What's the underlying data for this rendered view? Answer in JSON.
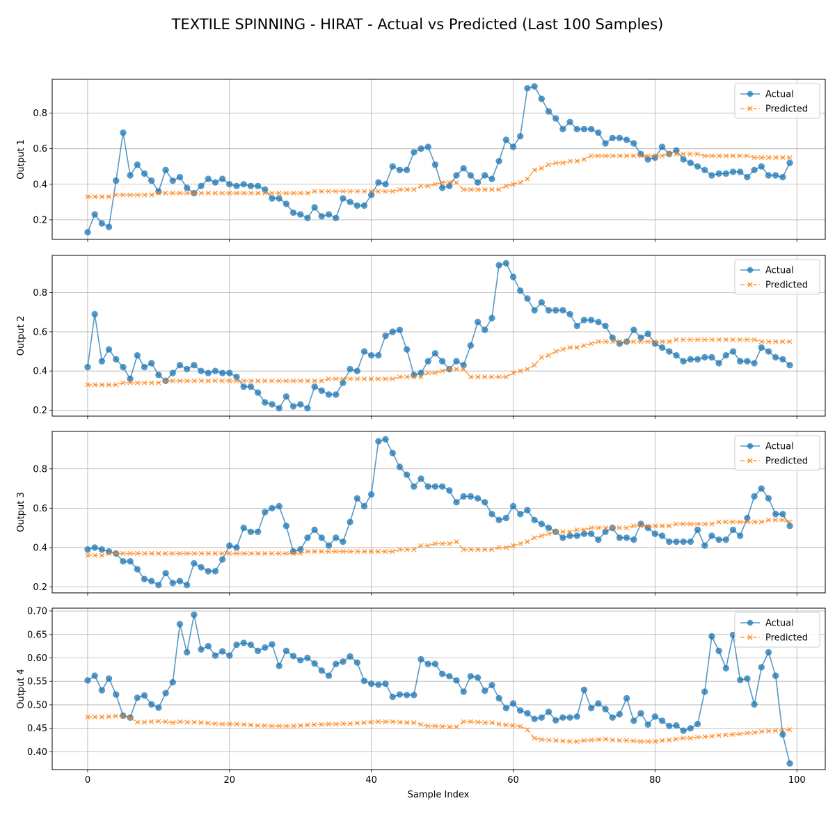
{
  "chart_data": {
    "type": "line",
    "title": "TEXTILE SPINNING - HIRAT - Actual vs Predicted (Last 100 Samples)",
    "xlabel": "Sample Index",
    "x_range": [
      0,
      99
    ],
    "xticks": [
      0,
      20,
      40,
      60,
      80,
      100
    ],
    "xlim": [
      -5,
      104
    ],
    "grid": true,
    "legend_position": "top-right",
    "colors": {
      "actual": "#1f77b4",
      "predicted": "#ff7f0e"
    },
    "subplots": [
      {
        "ylabel": "Output 1",
        "ylim": [
          0.09,
          0.99
        ],
        "yticks": [
          0.2,
          0.4,
          0.6,
          0.8
        ],
        "series": [
          {
            "name": "Actual",
            "marker": "circle",
            "values": [
              0.13,
              0.23,
              0.18,
              0.16,
              0.42,
              0.69,
              0.45,
              0.51,
              0.46,
              0.42,
              0.36,
              0.48,
              0.42,
              0.44,
              0.38,
              0.35,
              0.39,
              0.43,
              0.41,
              0.43,
              0.4,
              0.39,
              0.4,
              0.39,
              0.39,
              0.37,
              0.32,
              0.32,
              0.29,
              0.24,
              0.23,
              0.21,
              0.27,
              0.22,
              0.23,
              0.21,
              0.32,
              0.3,
              0.28,
              0.28,
              0.34,
              0.41,
              0.4,
              0.5,
              0.48,
              0.48,
              0.58,
              0.6,
              0.61,
              0.51,
              0.38,
              0.39,
              0.45,
              0.49,
              0.45,
              0.41,
              0.45,
              0.43,
              0.53,
              0.65,
              0.61,
              0.67,
              0.94,
              0.95,
              0.88,
              0.81,
              0.77,
              0.71,
              0.75,
              0.71,
              0.71,
              0.71,
              0.69,
              0.63,
              0.66,
              0.66,
              0.65,
              0.63,
              0.57,
              0.54,
              0.55,
              0.61,
              0.57,
              0.59,
              0.54,
              0.52,
              0.5,
              0.48,
              0.45,
              0.46,
              0.46,
              0.47,
              0.47,
              0.44,
              0.48,
              0.5,
              0.45,
              0.45,
              0.44,
              0.52
            ]
          },
          {
            "name": "Predicted",
            "marker": "x",
            "values": [
              0.33,
              0.33,
              0.33,
              0.33,
              0.34,
              0.34,
              0.34,
              0.34,
              0.34,
              0.34,
              0.35,
              0.35,
              0.35,
              0.35,
              0.35,
              0.35,
              0.35,
              0.35,
              0.35,
              0.35,
              0.35,
              0.35,
              0.35,
              0.35,
              0.35,
              0.35,
              0.35,
              0.35,
              0.35,
              0.35,
              0.35,
              0.35,
              0.36,
              0.36,
              0.36,
              0.36,
              0.36,
              0.36,
              0.36,
              0.36,
              0.36,
              0.36,
              0.36,
              0.36,
              0.37,
              0.37,
              0.37,
              0.39,
              0.39,
              0.4,
              0.41,
              0.41,
              0.41,
              0.37,
              0.37,
              0.37,
              0.37,
              0.37,
              0.37,
              0.39,
              0.4,
              0.41,
              0.43,
              0.48,
              0.49,
              0.51,
              0.52,
              0.52,
              0.53,
              0.53,
              0.54,
              0.56,
              0.56,
              0.56,
              0.56,
              0.56,
              0.56,
              0.56,
              0.56,
              0.56,
              0.56,
              0.56,
              0.57,
              0.57,
              0.57,
              0.57,
              0.57,
              0.56,
              0.56,
              0.56,
              0.56,
              0.56,
              0.56,
              0.56,
              0.55,
              0.55,
              0.55,
              0.55,
              0.55,
              0.55
            ]
          }
        ]
      },
      {
        "ylabel": "Output 2",
        "ylim": [
          0.17,
          0.99
        ],
        "yticks": [
          0.2,
          0.4,
          0.6,
          0.8
        ],
        "series": [
          {
            "name": "Actual",
            "marker": "circle",
            "values": [
              0.42,
              0.69,
              0.45,
              0.51,
              0.46,
              0.42,
              0.36,
              0.48,
              0.42,
              0.44,
              0.38,
              0.35,
              0.39,
              0.43,
              0.41,
              0.43,
              0.4,
              0.39,
              0.4,
              0.39,
              0.39,
              0.37,
              0.32,
              0.32,
              0.29,
              0.24,
              0.23,
              0.21,
              0.27,
              0.22,
              0.23,
              0.21,
              0.32,
              0.3,
              0.28,
              0.28,
              0.34,
              0.41,
              0.4,
              0.5,
              0.48,
              0.48,
              0.58,
              0.6,
              0.61,
              0.51,
              0.38,
              0.39,
              0.45,
              0.49,
              0.45,
              0.41,
              0.45,
              0.43,
              0.53,
              0.65,
              0.61,
              0.67,
              0.94,
              0.95,
              0.88,
              0.81,
              0.77,
              0.71,
              0.75,
              0.71,
              0.71,
              0.71,
              0.69,
              0.63,
              0.66,
              0.66,
              0.65,
              0.63,
              0.57,
              0.54,
              0.55,
              0.61,
              0.57,
              0.59,
              0.54,
              0.52,
              0.5,
              0.48,
              0.45,
              0.46,
              0.46,
              0.47,
              0.47,
              0.44,
              0.48,
              0.5,
              0.45,
              0.45,
              0.44,
              0.52,
              0.5,
              0.47,
              0.46,
              0.43
            ]
          },
          {
            "name": "Predicted",
            "marker": "x",
            "values": [
              0.33,
              0.33,
              0.33,
              0.33,
              0.33,
              0.34,
              0.34,
              0.34,
              0.34,
              0.34,
              0.34,
              0.35,
              0.35,
              0.35,
              0.35,
              0.35,
              0.35,
              0.35,
              0.35,
              0.35,
              0.35,
              0.35,
              0.35,
              0.35,
              0.35,
              0.35,
              0.35,
              0.35,
              0.35,
              0.35,
              0.35,
              0.35,
              0.35,
              0.35,
              0.36,
              0.36,
              0.36,
              0.36,
              0.36,
              0.36,
              0.36,
              0.36,
              0.36,
              0.36,
              0.37,
              0.37,
              0.37,
              0.37,
              0.39,
              0.39,
              0.4,
              0.41,
              0.41,
              0.41,
              0.37,
              0.37,
              0.37,
              0.37,
              0.37,
              0.37,
              0.39,
              0.4,
              0.41,
              0.43,
              0.47,
              0.48,
              0.5,
              0.51,
              0.52,
              0.52,
              0.53,
              0.54,
              0.55,
              0.55,
              0.55,
              0.55,
              0.55,
              0.55,
              0.55,
              0.55,
              0.55,
              0.55,
              0.55,
              0.56,
              0.56,
              0.56,
              0.56,
              0.56,
              0.56,
              0.56,
              0.56,
              0.56,
              0.56,
              0.56,
              0.56,
              0.55,
              0.55,
              0.55,
              0.55,
              0.55
            ]
          }
        ]
      },
      {
        "ylabel": "Output 3",
        "ylim": [
          0.17,
          0.99
        ],
        "yticks": [
          0.2,
          0.4,
          0.6,
          0.8
        ],
        "series": [
          {
            "name": "Actual",
            "marker": "circle",
            "values": [
              0.39,
              0.4,
              0.39,
              0.38,
              0.37,
              0.33,
              0.33,
              0.29,
              0.24,
              0.23,
              0.21,
              0.27,
              0.22,
              0.23,
              0.21,
              0.32,
              0.3,
              0.28,
              0.28,
              0.34,
              0.41,
              0.4,
              0.5,
              0.48,
              0.48,
              0.58,
              0.6,
              0.61,
              0.51,
              0.38,
              0.39,
              0.45,
              0.49,
              0.45,
              0.41,
              0.45,
              0.43,
              0.53,
              0.65,
              0.61,
              0.67,
              0.94,
              0.95,
              0.88,
              0.81,
              0.77,
              0.71,
              0.75,
              0.71,
              0.71,
              0.71,
              0.69,
              0.63,
              0.66,
              0.66,
              0.65,
              0.63,
              0.57,
              0.54,
              0.55,
              0.61,
              0.57,
              0.59,
              0.54,
              0.52,
              0.5,
              0.48,
              0.45,
              0.46,
              0.46,
              0.47,
              0.47,
              0.44,
              0.48,
              0.5,
              0.45,
              0.45,
              0.44,
              0.52,
              0.5,
              0.47,
              0.46,
              0.43,
              0.43,
              0.43,
              0.43,
              0.49,
              0.41,
              0.46,
              0.44,
              0.44,
              0.49,
              0.46,
              0.55,
              0.66,
              0.7,
              0.65,
              0.57,
              0.57,
              0.51
            ]
          },
          {
            "name": "Predicted",
            "marker": "x",
            "values": [
              0.36,
              0.36,
              0.36,
              0.37,
              0.37,
              0.37,
              0.37,
              0.37,
              0.37,
              0.37,
              0.37,
              0.37,
              0.37,
              0.37,
              0.37,
              0.37,
              0.37,
              0.37,
              0.37,
              0.37,
              0.37,
              0.37,
              0.37,
              0.37,
              0.37,
              0.37,
              0.37,
              0.37,
              0.37,
              0.37,
              0.37,
              0.38,
              0.38,
              0.38,
              0.38,
              0.38,
              0.38,
              0.38,
              0.38,
              0.38,
              0.38,
              0.38,
              0.38,
              0.38,
              0.39,
              0.39,
              0.39,
              0.41,
              0.41,
              0.42,
              0.42,
              0.42,
              0.43,
              0.39,
              0.39,
              0.39,
              0.39,
              0.39,
              0.4,
              0.4,
              0.41,
              0.42,
              0.43,
              0.45,
              0.46,
              0.47,
              0.48,
              0.48,
              0.48,
              0.49,
              0.49,
              0.5,
              0.5,
              0.5,
              0.5,
              0.5,
              0.5,
              0.51,
              0.51,
              0.51,
              0.51,
              0.51,
              0.51,
              0.52,
              0.52,
              0.52,
              0.52,
              0.52,
              0.52,
              0.53,
              0.53,
              0.53,
              0.53,
              0.53,
              0.53,
              0.53,
              0.54,
              0.54,
              0.54,
              0.53
            ]
          }
        ]
      },
      {
        "ylabel": "Output 4",
        "ylim": [
          0.362,
          0.706
        ],
        "yticks": [
          0.4,
          0.45,
          0.5,
          0.55,
          0.6,
          0.65,
          0.7
        ],
        "ytick_labels": [
          "0.40",
          "0.45",
          "0.50",
          "0.55",
          "0.60",
          "0.65",
          "0.70"
        ],
        "series": [
          {
            "name": "Actual",
            "marker": "circle",
            "values": [
              0.552,
              0.562,
              0.531,
              0.556,
              0.522,
              0.477,
              0.473,
              0.515,
              0.52,
              0.501,
              0.494,
              0.525,
              0.548,
              0.672,
              0.612,
              0.692,
              0.618,
              0.625,
              0.605,
              0.614,
              0.605,
              0.628,
              0.632,
              0.628,
              0.615,
              0.622,
              0.629,
              0.583,
              0.615,
              0.604,
              0.595,
              0.6,
              0.588,
              0.573,
              0.562,
              0.587,
              0.592,
              0.603,
              0.59,
              0.551,
              0.545,
              0.543,
              0.545,
              0.517,
              0.522,
              0.521,
              0.521,
              0.597,
              0.587,
              0.587,
              0.566,
              0.561,
              0.552,
              0.528,
              0.561,
              0.558,
              0.53,
              0.542,
              0.514,
              0.493,
              0.503,
              0.488,
              0.482,
              0.47,
              0.473,
              0.485,
              0.467,
              0.473,
              0.473,
              0.475,
              0.532,
              0.493,
              0.503,
              0.491,
              0.473,
              0.48,
              0.514,
              0.466,
              0.482,
              0.458,
              0.475,
              0.466,
              0.455,
              0.456,
              0.445,
              0.45,
              0.459,
              0.528,
              0.646,
              0.615,
              0.578,
              0.649,
              0.553,
              0.556,
              0.501,
              0.58,
              0.612,
              0.562,
              0.437,
              0.375
            ]
          },
          {
            "name": "Predicted",
            "marker": "x",
            "values": [
              0.474,
              0.474,
              0.474,
              0.475,
              0.476,
              0.476,
              0.472,
              0.463,
              0.463,
              0.464,
              0.465,
              0.464,
              0.462,
              0.464,
              0.463,
              0.463,
              0.462,
              0.461,
              0.46,
              0.459,
              0.459,
              0.459,
              0.458,
              0.457,
              0.456,
              0.456,
              0.455,
              0.455,
              0.455,
              0.455,
              0.456,
              0.457,
              0.458,
              0.458,
              0.459,
              0.459,
              0.46,
              0.46,
              0.461,
              0.462,
              0.463,
              0.464,
              0.464,
              0.464,
              0.463,
              0.462,
              0.462,
              0.458,
              0.455,
              0.455,
              0.454,
              0.453,
              0.453,
              0.464,
              0.464,
              0.463,
              0.462,
              0.462,
              0.459,
              0.457,
              0.456,
              0.454,
              0.447,
              0.429,
              0.426,
              0.425,
              0.424,
              0.423,
              0.422,
              0.422,
              0.424,
              0.425,
              0.426,
              0.427,
              0.425,
              0.424,
              0.424,
              0.423,
              0.422,
              0.422,
              0.422,
              0.424,
              0.425,
              0.427,
              0.429,
              0.429,
              0.431,
              0.432,
              0.433,
              0.435,
              0.436,
              0.437,
              0.438,
              0.44,
              0.441,
              0.443,
              0.444,
              0.445,
              0.446,
              0.447
            ]
          }
        ]
      }
    ]
  }
}
